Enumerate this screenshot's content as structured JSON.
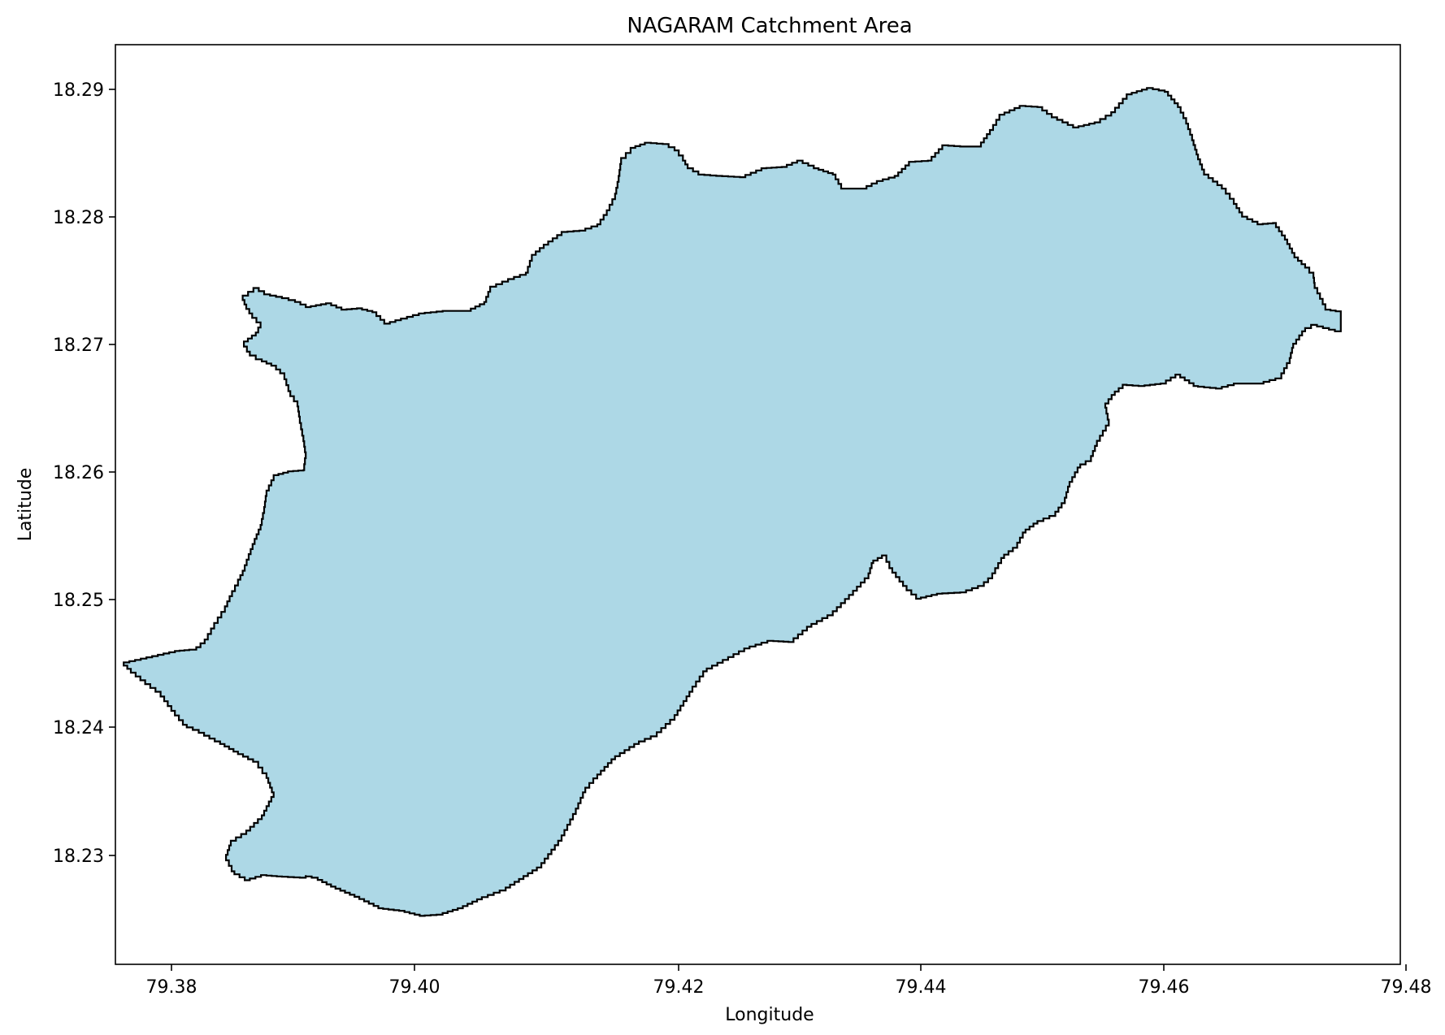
{
  "title": "NAGARAM Catchment Area",
  "xlabel": "Longitude",
  "ylabel": "Latitude",
  "x_ticks": [
    "79.38",
    "79.40",
    "79.42",
    "79.44",
    "79.46",
    "79.48"
  ],
  "y_ticks": [
    "18.29",
    "18.28",
    "18.27",
    "18.26",
    "18.25",
    "18.24",
    "18.23"
  ],
  "colors": {
    "fill": "#add8e6",
    "edge": "#000000"
  },
  "chart_data": {
    "type": "area",
    "xlim": [
      79.3735,
      79.4815
    ],
    "ylim": [
      18.2213,
      18.2935
    ],
    "polygon": [
      [
        79.3785,
        18.2459
      ],
      [
        79.3797,
        18.246
      ],
      [
        79.3803,
        18.2462
      ],
      [
        79.381,
        18.2468
      ],
      [
        79.3818,
        18.2481
      ],
      [
        79.3827,
        18.2494
      ],
      [
        79.3833,
        18.2506
      ],
      [
        79.3838,
        18.2515
      ],
      [
        79.3842,
        18.2522
      ],
      [
        79.3847,
        18.2535
      ],
      [
        79.3852,
        18.2547
      ],
      [
        79.3857,
        18.2558
      ],
      [
        79.386,
        18.2572
      ],
      [
        79.3862,
        18.2585
      ],
      [
        79.3868,
        18.2597
      ],
      [
        79.388,
        18.26
      ],
      [
        79.3893,
        18.2601
      ],
      [
        79.3895,
        18.2615
      ],
      [
        79.3893,
        18.2628
      ],
      [
        79.389,
        18.2643
      ],
      [
        79.3888,
        18.2655
      ],
      [
        79.3882,
        18.2663
      ],
      [
        79.3877,
        18.2677
      ],
      [
        79.387,
        18.2683
      ],
      [
        79.3858,
        18.2688
      ],
      [
        79.3848,
        18.2694
      ],
      [
        79.3843,
        18.2702
      ],
      [
        79.3853,
        18.2709
      ],
      [
        79.3857,
        18.2717
      ],
      [
        79.385,
        18.2724
      ],
      [
        79.3845,
        18.2731
      ],
      [
        79.3842,
        18.2738
      ],
      [
        79.3851,
        18.2744
      ],
      [
        79.386,
        18.2739
      ],
      [
        79.3875,
        18.2736
      ],
      [
        79.3886,
        18.2733
      ],
      [
        79.3895,
        18.2729
      ],
      [
        79.3912,
        18.2732
      ],
      [
        79.3925,
        18.2727
      ],
      [
        79.3938,
        18.2728
      ],
      [
        79.3951,
        18.2725
      ],
      [
        79.3961,
        18.2716
      ],
      [
        79.3975,
        18.272
      ],
      [
        79.399,
        18.2724
      ],
      [
        79.401,
        18.2726
      ],
      [
        79.403,
        18.2726
      ],
      [
        79.4045,
        18.2733
      ],
      [
        79.405,
        18.2745
      ],
      [
        79.4065,
        18.2751
      ],
      [
        79.408,
        18.2756
      ],
      [
        79.4085,
        18.277
      ],
      [
        79.4095,
        18.2778
      ],
      [
        79.411,
        18.2788
      ],
      [
        79.4125,
        18.2789
      ],
      [
        79.414,
        18.2794
      ],
      [
        79.4148,
        18.2805
      ],
      [
        79.4155,
        18.2818
      ],
      [
        79.4158,
        18.2832
      ],
      [
        79.416,
        18.2846
      ],
      [
        79.4168,
        18.2854
      ],
      [
        79.418,
        18.2858
      ],
      [
        79.4195,
        18.2857
      ],
      [
        79.4205,
        18.2852
      ],
      [
        79.4212,
        18.2844
      ],
      [
        79.4216,
        18.2838
      ],
      [
        79.4225,
        18.2833
      ],
      [
        79.424,
        18.2832
      ],
      [
        79.426,
        18.2831
      ],
      [
        79.4278,
        18.2838
      ],
      [
        79.4295,
        18.2839
      ],
      [
        79.4308,
        18.2844
      ],
      [
        79.4322,
        18.2838
      ],
      [
        79.4338,
        18.2833
      ],
      [
        79.4345,
        18.2822
      ],
      [
        79.4362,
        18.2822
      ],
      [
        79.4375,
        18.2828
      ],
      [
        79.439,
        18.2832
      ],
      [
        79.4402,
        18.2843
      ],
      [
        79.4418,
        18.2844
      ],
      [
        79.443,
        18.2856
      ],
      [
        79.4445,
        18.2855
      ],
      [
        79.446,
        18.2855
      ],
      [
        79.447,
        18.2868
      ],
      [
        79.4478,
        18.288
      ],
      [
        79.4495,
        18.2887
      ],
      [
        79.451,
        18.2886
      ],
      [
        79.4522,
        18.2878
      ],
      [
        79.454,
        18.287
      ],
      [
        79.4558,
        18.2874
      ],
      [
        79.4572,
        18.2882
      ],
      [
        79.4585,
        18.2896
      ],
      [
        79.4602,
        18.2901
      ],
      [
        79.4617,
        18.2898
      ],
      [
        79.4628,
        18.2886
      ],
      [
        79.4635,
        18.2873
      ],
      [
        79.464,
        18.286
      ],
      [
        79.4645,
        18.2845
      ],
      [
        79.465,
        18.2833
      ],
      [
        79.4665,
        18.2822
      ],
      [
        79.4675,
        18.281
      ],
      [
        79.4682,
        18.28
      ],
      [
        79.4695,
        18.2794
      ],
      [
        79.4708,
        18.2795
      ],
      [
        79.4718,
        18.2782
      ],
      [
        79.4726,
        18.2768
      ],
      [
        79.4735,
        18.276
      ],
      [
        79.4742,
        18.2752
      ],
      [
        79.4743,
        18.2744
      ],
      [
        79.4752,
        18.2727
      ],
      [
        79.4765,
        18.2725
      ],
      [
        79.4765,
        18.271
      ],
      [
        79.4745,
        18.2715
      ],
      [
        79.4735,
        18.271
      ],
      [
        79.4725,
        18.2697
      ],
      [
        79.4722,
        18.2685
      ],
      [
        79.4715,
        18.2673
      ],
      [
        79.47,
        18.2669
      ],
      [
        79.468,
        18.2669
      ],
      [
        79.4665,
        18.2665
      ],
      [
        79.4645,
        18.2667
      ],
      [
        79.463,
        18.2676
      ],
      [
        79.4618,
        18.2669
      ],
      [
        79.46,
        18.2667
      ],
      [
        79.4585,
        18.2668
      ],
      [
        79.4575,
        18.266
      ],
      [
        79.4567,
        18.265
      ],
      [
        79.457,
        18.2636
      ],
      [
        79.456,
        18.262
      ],
      [
        79.4555,
        18.2608
      ],
      [
        79.4546,
        18.2603
      ],
      [
        79.4537,
        18.2588
      ],
      [
        79.4533,
        18.2575
      ],
      [
        79.4525,
        18.2565
      ],
      [
        79.451,
        18.2559
      ],
      [
        79.45,
        18.2552
      ],
      [
        79.4493,
        18.254
      ],
      [
        79.4482,
        18.2532
      ],
      [
        79.4472,
        18.2516
      ],
      [
        79.4465,
        18.251
      ],
      [
        79.445,
        18.2505
      ],
      [
        79.443,
        18.2504
      ],
      [
        79.4412,
        18.25
      ],
      [
        79.44,
        18.251
      ],
      [
        79.4388,
        18.2524
      ],
      [
        79.4383,
        18.2534
      ],
      [
        79.4372,
        18.2528
      ],
      [
        79.4368,
        18.2516
      ],
      [
        79.4355,
        18.2503
      ],
      [
        79.4338,
        18.2487
      ],
      [
        79.432,
        18.2478
      ],
      [
        79.4305,
        18.2466
      ],
      [
        79.4288,
        18.2467
      ],
      [
        79.4268,
        18.2461
      ],
      [
        79.425,
        18.2452
      ],
      [
        79.4232,
        18.2443
      ],
      [
        79.422,
        18.2427
      ],
      [
        79.4205,
        18.2405
      ],
      [
        79.419,
        18.2392
      ],
      [
        79.4175,
        18.2386
      ],
      [
        79.4155,
        18.2374
      ],
      [
        79.414,
        18.2359
      ],
      [
        79.413,
        18.2348
      ],
      [
        79.4122,
        18.2331
      ],
      [
        79.411,
        18.231
      ],
      [
        79.4093,
        18.2289
      ],
      [
        79.4078,
        18.228
      ],
      [
        79.4063,
        18.2271
      ],
      [
        79.4043,
        18.2264
      ],
      [
        79.4027,
        18.2257
      ],
      [
        79.401,
        18.2252
      ],
      [
        79.3995,
        18.2251
      ],
      [
        79.3978,
        18.2255
      ],
      [
        79.396,
        18.2257
      ],
      [
        79.394,
        18.2266
      ],
      [
        79.392,
        18.2274
      ],
      [
        79.3905,
        18.2281
      ],
      [
        79.3895,
        18.2283
      ],
      [
        79.3895,
        18.2281
      ],
      [
        79.3875,
        18.2282
      ],
      [
        79.3862,
        18.2283
      ],
      [
        79.3848,
        18.2279
      ],
      [
        79.3835,
        18.2286
      ],
      [
        79.3828,
        18.2299
      ],
      [
        79.3832,
        18.231
      ],
      [
        79.3845,
        18.2318
      ],
      [
        79.3858,
        18.233
      ],
      [
        79.3868,
        18.2348
      ],
      [
        79.3862,
        18.2363
      ],
      [
        79.3855,
        18.2372
      ],
      [
        79.3838,
        18.238
      ],
      [
        79.3823,
        18.2388
      ],
      [
        79.3805,
        18.2397
      ],
      [
        79.3795,
        18.2401
      ],
      [
        79.3785,
        18.2412
      ],
      [
        79.3773,
        18.2427
      ],
      [
        79.376,
        18.2436
      ],
      [
        79.3748,
        18.2445
      ],
      [
        79.3742,
        18.245
      ],
      [
        79.3785,
        18.2459
      ]
    ]
  }
}
